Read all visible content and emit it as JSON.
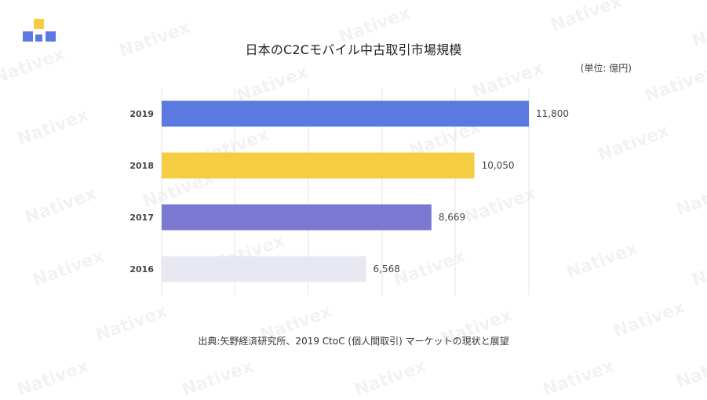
{
  "brand": {
    "logo_colors": [
      "#f5cd43",
      "#5b7ae1",
      "#5b7ae1",
      "#5b7ae1"
    ],
    "watermark_text": "Nativex"
  },
  "header": {
    "title": "日本のC2Cモバイル中古取引市場規模",
    "unit_note": "(単位: 億円)"
  },
  "footer": {
    "source": "出典:矢野経済研究所、2019 CtoC (個人間取引) マーケットの現状と展望"
  },
  "chart_data": {
    "type": "bar",
    "orientation": "horizontal",
    "title": "日本のC2Cモバイル中古取引市場規模",
    "unit": "(単位: 億円)",
    "categories": [
      "2019",
      "2018",
      "2017",
      "2016"
    ],
    "values": [
      11800,
      10050,
      8669,
      6568
    ],
    "value_labels": [
      "11,800",
      "10,050",
      "8,669",
      "6,568"
    ],
    "colors": [
      "#5b7ae1",
      "#f5cd43",
      "#7b78d4",
      "#e8e8f2"
    ],
    "xlim": [
      0,
      12500
    ],
    "grid": true,
    "gridlines": [
      0,
      2500,
      5000,
      7500,
      10000,
      12500
    ],
    "legend": "none"
  }
}
